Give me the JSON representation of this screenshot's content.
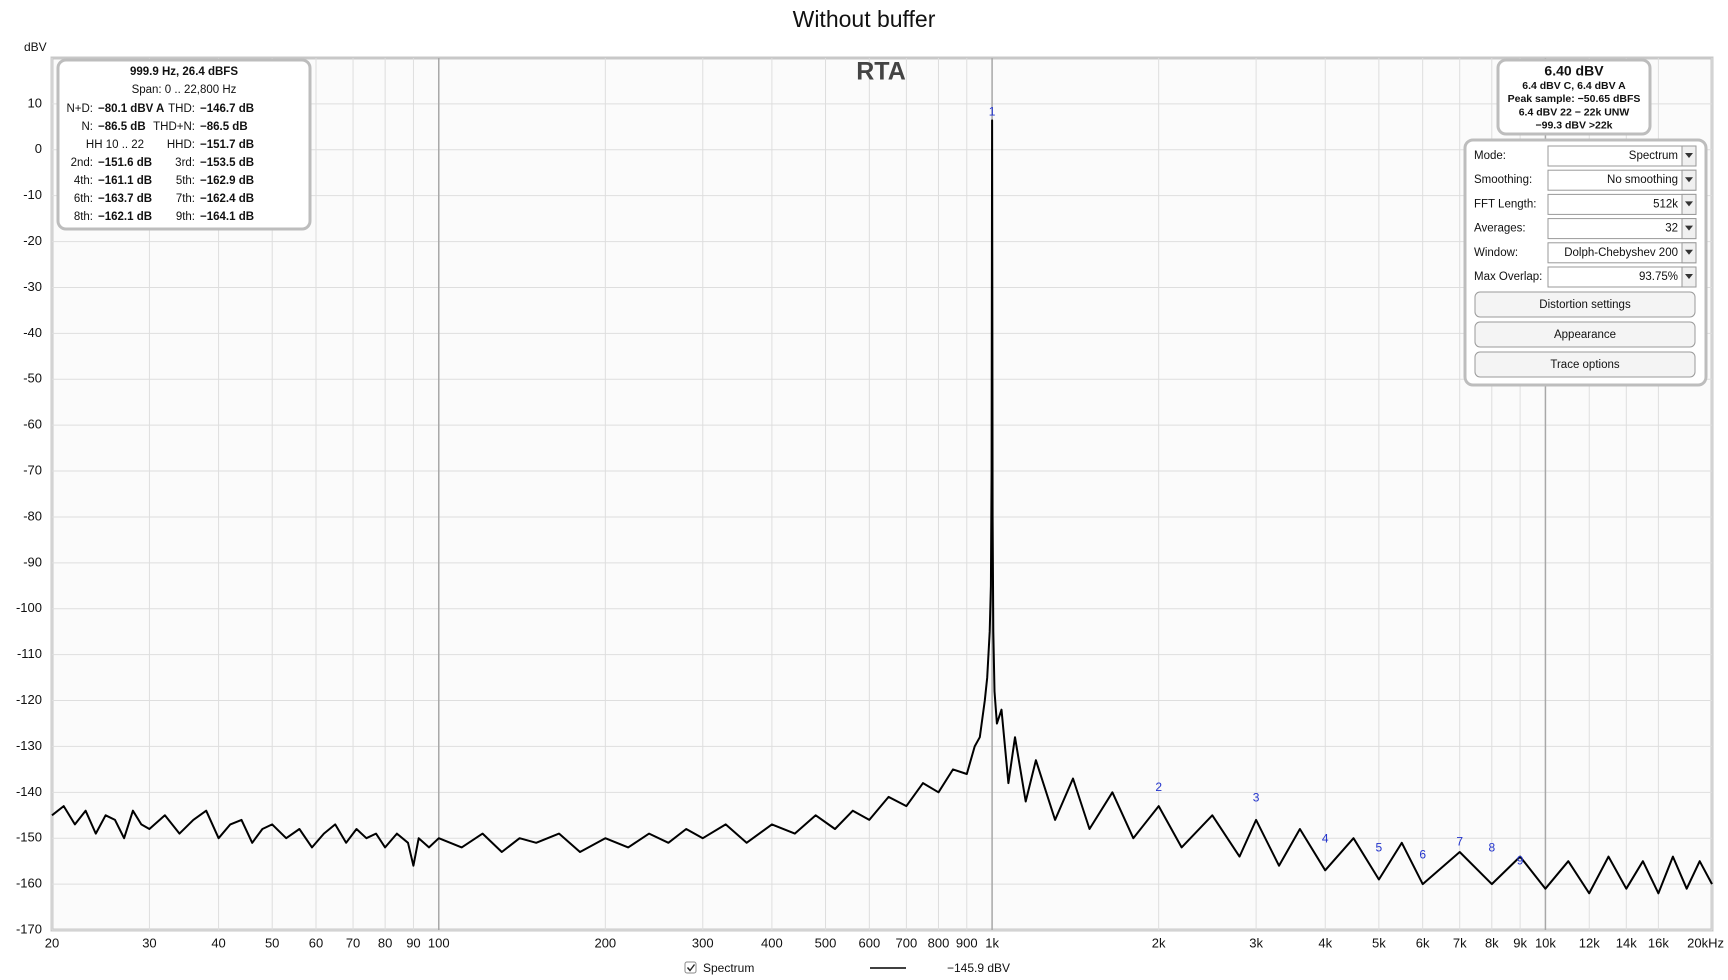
{
  "chart_data": {
    "type": "line",
    "title": "Without buffer",
    "plot_label": "RTA",
    "y_label": "dBV",
    "x_scale": "log",
    "grid": true,
    "xlim": [
      20,
      20000
    ],
    "ylim": [
      -170,
      20
    ],
    "xticks": [
      20,
      30,
      40,
      50,
      60,
      70,
      80,
      90,
      100,
      200,
      300,
      400,
      500,
      600,
      700,
      800,
      900,
      {
        "value": 1000,
        "label": "1k"
      },
      {
        "value": 2000,
        "label": "2k"
      },
      {
        "value": 3000,
        "label": "3k"
      },
      {
        "value": 4000,
        "label": "4k"
      },
      {
        "value": 5000,
        "label": "5k"
      },
      {
        "value": 6000,
        "label": "6k"
      },
      {
        "value": 7000,
        "label": "7k"
      },
      {
        "value": 8000,
        "label": "8k"
      },
      {
        "value": 9000,
        "label": "9k"
      },
      {
        "value": 10000,
        "label": "10k"
      },
      {
        "value": 12000,
        "label": "12k"
      },
      {
        "value": 14000,
        "label": "14k"
      },
      {
        "value": 16000,
        "label": "16k"
      },
      {
        "value": 20000,
        "label": "20kHz"
      }
    ],
    "yticks": [
      10,
      0,
      -10,
      -20,
      -30,
      -40,
      -50,
      -60,
      -70,
      -80,
      -90,
      -100,
      -110,
      -120,
      -130,
      -140,
      -150,
      -160,
      -170
    ],
    "x": [
      20,
      21,
      22,
      23,
      24,
      25,
      26,
      27,
      28,
      29,
      30,
      32,
      34,
      36,
      38,
      40,
      42,
      44,
      46,
      48,
      50,
      53,
      56,
      59,
      62,
      65,
      68,
      71,
      74,
      77,
      80,
      84,
      88,
      90,
      92,
      96,
      100,
      110,
      120,
      130,
      140,
      150,
      165,
      180,
      200,
      220,
      240,
      260,
      280,
      300,
      330,
      360,
      400,
      440,
      480,
      520,
      560,
      600,
      650,
      700,
      750,
      800,
      850,
      900,
      930,
      950,
      970,
      980,
      990,
      995,
      998,
      1000,
      1002,
      1005,
      1010,
      1020,
      1040,
      1070,
      1100,
      1150,
      1200,
      1300,
      1400,
      1500,
      1650,
      1800,
      2000,
      2200,
      2500,
      2800,
      3000,
      3300,
      3600,
      4000,
      4500,
      5000,
      5500,
      6000,
      7000,
      8000,
      9000,
      10000,
      11000,
      12000,
      13000,
      14000,
      15000,
      16000,
      17000,
      18000,
      19000,
      20000
    ],
    "series": [
      {
        "name": "Spectrum",
        "color": "#000000",
        "readout": "−145.9 dBV",
        "values": [
          -145,
          -143,
          -147,
          -144,
          -149,
          -145,
          -146,
          -150,
          -144,
          -147,
          -148,
          -145,
          -149,
          -146,
          -144,
          -150,
          -147,
          -146,
          -151,
          -148,
          -147,
          -150,
          -148,
          -152,
          -149,
          -147,
          -151,
          -148,
          -150,
          -149,
          -152,
          -149,
          -151,
          -156,
          -150,
          -152,
          -150,
          -152,
          -149,
          -153,
          -150,
          -151,
          -149,
          -153,
          -150,
          -152,
          -149,
          -151,
          -148,
          -150,
          -147,
          -151,
          -147,
          -149,
          -145,
          -148,
          -144,
          -146,
          -141,
          -143,
          -138,
          -140,
          -135,
          -136,
          -130,
          -128,
          -120,
          -115,
          -105,
          -95,
          -70,
          6.4,
          -80,
          -105,
          -118,
          -125,
          -122,
          -138,
          -128,
          -142,
          -133,
          -146,
          -137,
          -148,
          -140,
          -150,
          -143,
          -152,
          -145,
          -154,
          -146,
          -156,
          -148,
          -157,
          -150,
          -159,
          -151,
          -160,
          -153,
          -160,
          -154,
          -161,
          -155,
          -162,
          -154,
          -161,
          -155,
          -162,
          -154,
          -161,
          -155,
          -160
        ]
      }
    ],
    "markers": [
      {
        "label": "1",
        "x": 1000,
        "y": 6.4
      },
      {
        "label": "2",
        "x": 2000,
        "y": -140.8
      },
      {
        "label": "3",
        "x": 3000,
        "y": -143
      },
      {
        "label": "4",
        "x": 4000,
        "y": -152
      },
      {
        "label": "5",
        "x": 5000,
        "y": -154
      },
      {
        "label": "6",
        "x": 6000,
        "y": -155.5
      },
      {
        "label": "7",
        "x": 7000,
        "y": -152.6
      },
      {
        "label": "8",
        "x": 8000,
        "y": -154
      },
      {
        "label": "9",
        "x": 9000,
        "y": -156.8
      }
    ]
  },
  "measurement_panel": {
    "lines": [
      "999.9 Hz, 26.4 dBFS",
      "Span: 0 .. 22,800 Hz"
    ],
    "rows": [
      [
        [
          "N+D:",
          "−80.1 dBV A"
        ],
        [
          "THD:",
          "−146.7 dB"
        ]
      ],
      [
        [
          "N:",
          "−86.5 dB"
        ],
        [
          "THD+N:",
          "−86.5 dB"
        ]
      ],
      [
        [
          "HH 10 .. 22"
        ],
        [
          "HHD:",
          "−151.7 dB"
        ]
      ],
      [
        [
          "2nd:",
          "−151.6 dB"
        ],
        [
          "3rd:",
          "−153.5 dB"
        ]
      ],
      [
        [
          "4th:",
          "−161.1 dB"
        ],
        [
          "5th:",
          "−162.9 dB"
        ]
      ],
      [
        [
          "6th:",
          "−163.7 dB"
        ],
        [
          "7th:",
          "−162.4 dB"
        ]
      ],
      [
        [
          "8th:",
          "−162.1 dB"
        ],
        [
          "9th:",
          "−164.1 dB"
        ]
      ]
    ]
  },
  "level_panel": {
    "level": "6.40 dBV",
    "lines": [
      "6.4 dBV C, 6.4 dBV A",
      "Peak sample: −50.65 dBFS",
      "6.4 dBV 22 − 22k UNW",
      "−99.3 dBV >22k"
    ]
  },
  "controls": {
    "settings": [
      {
        "label": "Mode:",
        "value": "Spectrum"
      },
      {
        "label": "Smoothing:",
        "value": "No  smoothing"
      },
      {
        "label": "FFT Length:",
        "value": "512k"
      },
      {
        "label": "Averages:",
        "value": "32"
      },
      {
        "label": "Window:",
        "value": "Dolph-Chebyshev 200"
      },
      {
        "label": "Max Overlap:",
        "value": "93.75%"
      }
    ],
    "buttons": [
      "Distortion settings",
      "Appearance",
      "Trace options"
    ]
  }
}
